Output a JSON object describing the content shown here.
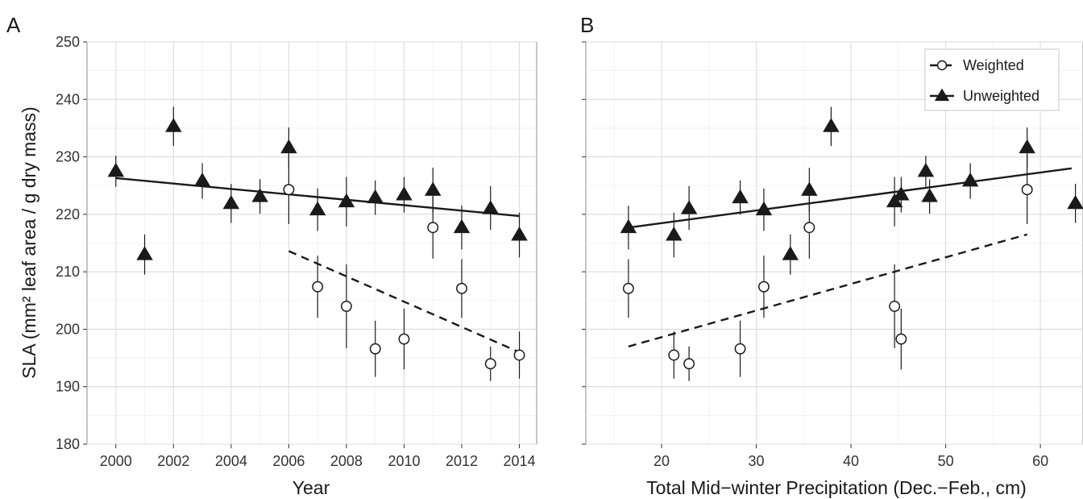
{
  "chart_data": [
    {
      "panel_label": "A",
      "type": "scatter",
      "xlabel": "Year",
      "ylabel": "SLA (mm² leaf area / g dry mass)",
      "xlim": [
        1999,
        2014.6
      ],
      "ylim": [
        180,
        250
      ],
      "xticks": [
        2000,
        2002,
        2004,
        2006,
        2008,
        2010,
        2012,
        2014
      ],
      "yticks": [
        180,
        190,
        200,
        210,
        220,
        230,
        240,
        250
      ],
      "grid": true,
      "series": [
        {
          "name": "Weighted",
          "marker": "open-circle",
          "points": [
            {
              "x": 2006,
              "y": 224.3,
              "lo": 218.3,
              "hi": 230.3
            },
            {
              "x": 2007,
              "y": 207.4,
              "lo": 202.0,
              "hi": 212.8
            },
            {
              "x": 2008,
              "y": 204.0,
              "lo": 196.7,
              "hi": 211.3
            },
            {
              "x": 2009,
              "y": 196.6,
              "lo": 191.7,
              "hi": 201.5
            },
            {
              "x": 2010,
              "y": 198.3,
              "lo": 193.0,
              "hi": 203.6
            },
            {
              "x": 2011,
              "y": 217.7,
              "lo": 212.3,
              "hi": 223.1
            },
            {
              "x": 2012,
              "y": 207.1,
              "lo": 202.0,
              "hi": 212.2
            },
            {
              "x": 2013,
              "y": 194.0,
              "lo": 191.0,
              "hi": 197.0
            },
            {
              "x": 2014,
              "y": 195.5,
              "lo": 191.4,
              "hi": 199.6
            }
          ],
          "fit": {
            "style": "dashed",
            "x": [
              2006,
              2014
            ],
            "y": [
              213.6,
              196.0
            ]
          }
        },
        {
          "name": "Unweighted",
          "marker": "filled-triangle",
          "points": [
            {
              "x": 2000,
              "y": 227.5,
              "lo": 224.8,
              "hi": 230.2
            },
            {
              "x": 2001,
              "y": 213.0,
              "lo": 209.5,
              "hi": 216.5
            },
            {
              "x": 2002,
              "y": 235.3,
              "lo": 231.9,
              "hi": 238.7
            },
            {
              "x": 2003,
              "y": 225.8,
              "lo": 222.7,
              "hi": 228.9
            },
            {
              "x": 2004,
              "y": 221.9,
              "lo": 218.5,
              "hi": 225.3
            },
            {
              "x": 2005,
              "y": 223.1,
              "lo": 220.1,
              "hi": 226.1
            },
            {
              "x": 2006,
              "y": 231.6,
              "lo": 228.1,
              "hi": 235.1
            },
            {
              "x": 2007,
              "y": 220.8,
              "lo": 217.1,
              "hi": 224.5
            },
            {
              "x": 2008,
              "y": 222.2,
              "lo": 217.9,
              "hi": 226.5
            },
            {
              "x": 2009,
              "y": 222.9,
              "lo": 219.9,
              "hi": 225.9
            },
            {
              "x": 2010,
              "y": 223.4,
              "lo": 220.3,
              "hi": 226.5
            },
            {
              "x": 2011,
              "y": 224.2,
              "lo": 220.3,
              "hi": 228.1
            },
            {
              "x": 2012,
              "y": 217.7,
              "lo": 213.9,
              "hi": 221.5
            },
            {
              "x": 2013,
              "y": 221.0,
              "lo": 217.3,
              "hi": 224.9
            },
            {
              "x": 2014,
              "y": 216.4,
              "lo": 212.5,
              "hi": 220.3
            }
          ],
          "fit": {
            "style": "solid",
            "x": [
              2000,
              2014
            ],
            "y": [
              226.3,
              219.7
            ]
          }
        }
      ]
    },
    {
      "panel_label": "B",
      "type": "scatter",
      "xlabel": "Total Mid−winter Precipitation (Dec.−Feb., cm)",
      "ylabel": "",
      "xlim": [
        12,
        64.5
      ],
      "ylim": [
        180,
        250
      ],
      "xticks": [
        20,
        30,
        40,
        50,
        60
      ],
      "yticks": [
        180,
        190,
        200,
        210,
        220,
        230,
        240,
        250
      ],
      "grid": true,
      "legend": {
        "position": "top-right",
        "entries": [
          "Weighted",
          "Unweighted"
        ]
      },
      "series": [
        {
          "name": "Weighted",
          "marker": "open-circle",
          "points": [
            {
              "x": 16.5,
              "y": 207.1,
              "lo": 202.0,
              "hi": 212.2
            },
            {
              "x": 21.3,
              "y": 195.5,
              "lo": 191.4,
              "hi": 199.6
            },
            {
              "x": 22.9,
              "y": 194.0,
              "lo": 191.0,
              "hi": 197.0
            },
            {
              "x": 28.3,
              "y": 196.6,
              "lo": 191.7,
              "hi": 201.5
            },
            {
              "x": 30.8,
              "y": 207.4,
              "lo": 202.0,
              "hi": 212.8
            },
            {
              "x": 35.6,
              "y": 217.7,
              "lo": 212.3,
              "hi": 223.1
            },
            {
              "x": 44.6,
              "y": 204.0,
              "lo": 196.7,
              "hi": 211.3
            },
            {
              "x": 45.3,
              "y": 198.3,
              "lo": 193.0,
              "hi": 203.6
            },
            {
              "x": 58.6,
              "y": 224.3,
              "lo": 218.3,
              "hi": 230.3
            }
          ],
          "fit": {
            "style": "dashed",
            "x": [
              16.5,
              58.6
            ],
            "y": [
              197.0,
              216.5
            ]
          }
        },
        {
          "name": "Unweighted",
          "marker": "filled-triangle",
          "points": [
            {
              "x": 16.5,
              "y": 217.7,
              "lo": 213.9,
              "hi": 221.5
            },
            {
              "x": 21.3,
              "y": 216.4,
              "lo": 212.5,
              "hi": 220.3
            },
            {
              "x": 22.9,
              "y": 221.0,
              "lo": 217.3,
              "hi": 224.9
            },
            {
              "x": 28.3,
              "y": 222.9,
              "lo": 219.9,
              "hi": 225.9
            },
            {
              "x": 30.8,
              "y": 220.8,
              "lo": 217.1,
              "hi": 224.5
            },
            {
              "x": 33.6,
              "y": 213.0,
              "lo": 209.5,
              "hi": 216.5
            },
            {
              "x": 35.6,
              "y": 224.2,
              "lo": 220.3,
              "hi": 228.1
            },
            {
              "x": 37.9,
              "y": 235.3,
              "lo": 231.9,
              "hi": 238.7
            },
            {
              "x": 44.6,
              "y": 222.2,
              "lo": 217.9,
              "hi": 226.5
            },
            {
              "x": 45.3,
              "y": 223.4,
              "lo": 220.3,
              "hi": 226.5
            },
            {
              "x": 47.9,
              "y": 227.5,
              "lo": 224.8,
              "hi": 230.2
            },
            {
              "x": 48.3,
              "y": 223.1,
              "lo": 220.1,
              "hi": 226.1
            },
            {
              "x": 52.6,
              "y": 225.8,
              "lo": 222.7,
              "hi": 228.9
            },
            {
              "x": 58.6,
              "y": 231.6,
              "lo": 228.1,
              "hi": 235.1
            },
            {
              "x": 63.7,
              "y": 221.9,
              "lo": 218.5,
              "hi": 225.3
            }
          ],
          "fit": {
            "style": "solid",
            "x": [
              16.5,
              63.3
            ],
            "y": [
              217.7,
              228.0
            ]
          }
        }
      ]
    }
  ]
}
